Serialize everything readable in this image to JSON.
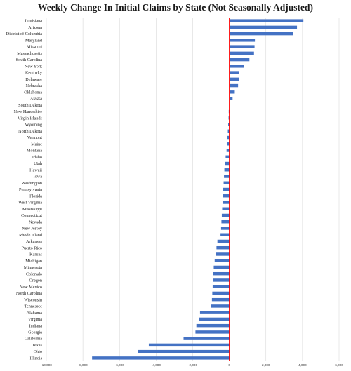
{
  "chart_data": {
    "type": "bar",
    "orientation": "horizontal",
    "title": "Weekly Change In Initial Claims by State (Not Seasonally Adjusted)",
    "xlabel": "",
    "ylabel": "",
    "xlim": [
      -10000,
      6000
    ],
    "ticks": [
      -10000,
      -8000,
      -6000,
      -4000,
      -2000,
      0,
      2000,
      4000,
      6000
    ],
    "tick_labels": [
      "-10,000",
      "-8,000",
      "-6,000",
      "-4,000",
      "-2,000",
      "0",
      "2,000",
      "4,000",
      "6,000"
    ],
    "grid": true,
    "legend": "none",
    "colors": {
      "bar": "#4472c4",
      "zero_line": "#ff0000",
      "grid": "#d9d9d9"
    },
    "categories": [
      "Louisiana",
      "Arizona",
      "District of Columbia",
      "Maryland",
      "Missouri",
      "Massachusetts",
      "South Carolina",
      "New York",
      "Kentucky",
      "Delaware",
      "Nebraska",
      "Oklahoma",
      "Alaska",
      "South Dakota",
      "New Hampshire",
      "Virgin Islands",
      "Wyoming",
      "North Dakota",
      "Vermont",
      "Maine",
      "Montana",
      "Idaho",
      "Utah",
      "Hawaii",
      "Iowa",
      "Washington",
      "Pennsylvania",
      "Florida",
      "West Virginia",
      "Mississippi",
      "Connecticut",
      "Nevada",
      "New Jersey",
      "Rhode Island",
      "Arkansas",
      "Puerto Rico",
      "Kansas",
      "Michigan",
      "Minnesota",
      "Colorado",
      "Oregon",
      "New Mexico",
      "North Carolina",
      "Wisconsin",
      "Tennessee",
      "Alabama",
      "Virginia",
      "Indiana",
      "Georgia",
      "California",
      "Texas",
      "Ohio",
      "Illinois"
    ],
    "values": [
      4050,
      3700,
      3500,
      1400,
      1380,
      1350,
      1100,
      800,
      550,
      520,
      480,
      300,
      180,
      20,
      -30,
      -40,
      -60,
      -80,
      -100,
      -120,
      -150,
      -200,
      -250,
      -270,
      -290,
      -310,
      -330,
      -350,
      -370,
      -390,
      -410,
      -430,
      -450,
      -480,
      -650,
      -700,
      -750,
      -800,
      -850,
      -870,
      -890,
      -910,
      -930,
      -950,
      -1000,
      -1600,
      -1650,
      -1800,
      -1850,
      -2500,
      -4400,
      -5000,
      -7500
    ]
  }
}
